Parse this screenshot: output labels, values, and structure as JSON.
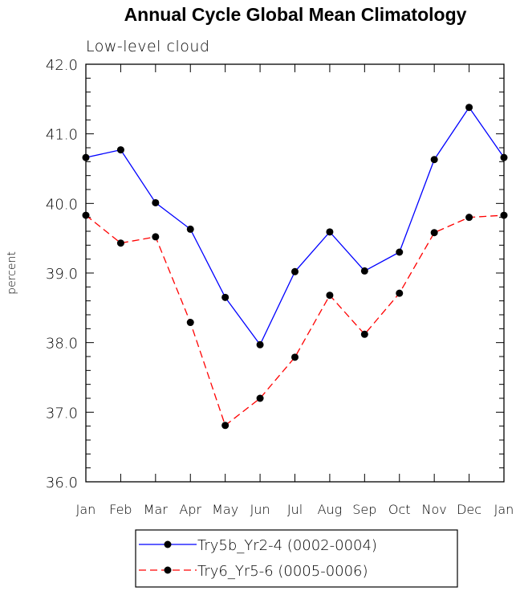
{
  "chart_data": {
    "type": "line",
    "title": "Annual Cycle Global Mean Climatology",
    "subtitle": "Low-level cloud",
    "ylabel": "percent",
    "ylim": [
      36.0,
      42.0
    ],
    "yticks": [
      "36.0",
      "37.0",
      "38.0",
      "39.0",
      "40.0",
      "41.0",
      "42.0"
    ],
    "categories": [
      "Jan",
      "Feb",
      "Mar",
      "Apr",
      "May",
      "Jun",
      "Jul",
      "Aug",
      "Sep",
      "Oct",
      "Nov",
      "Dec",
      "Jan"
    ],
    "series": [
      {
        "name": "Try5b_Yr2-4 (0002-0004)",
        "color": "#0000ff",
        "dash": "solid",
        "values": [
          40.66,
          40.77,
          40.01,
          39.63,
          38.65,
          37.97,
          39.02,
          39.59,
          39.03,
          39.3,
          40.63,
          41.38,
          40.66
        ]
      },
      {
        "name": "Try6_Yr5-6 (0005-0006)",
        "color": "#ff0000",
        "dash": "dashed",
        "values": [
          39.83,
          39.43,
          39.52,
          38.29,
          36.81,
          37.2,
          37.79,
          38.68,
          38.12,
          38.71,
          39.58,
          39.8,
          39.83
        ]
      }
    ]
  }
}
